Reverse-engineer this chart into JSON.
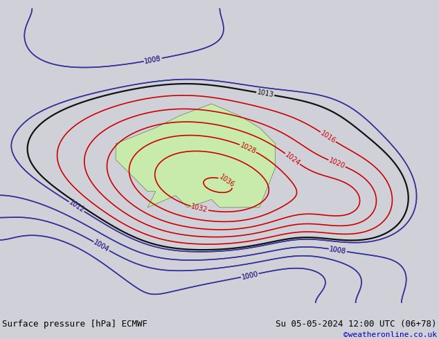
{
  "title_left": "Surface pressure [hPa] ECMWF",
  "title_right": "Su 05-05-2024 12:00 UTC (06+78)",
  "credit": "©weatheronline.co.uk",
  "background_color": "#d0d0d8",
  "land_color": "#c8eaaa",
  "ocean_color": "#d0d0d8",
  "coastline_color": "#555555",
  "bottom_bar_color": "#e4e4e4",
  "contour_color_red": "#cc0000",
  "contour_color_blue": "#0044cc",
  "contour_color_black": "#111111",
  "lon_min": 85,
  "lon_max": 195,
  "lat_min": -62,
  "lat_max": 12,
  "label_fontsize": 7,
  "title_fontsize": 9,
  "credit_fontsize": 8,
  "credit_color": "#0000bb"
}
